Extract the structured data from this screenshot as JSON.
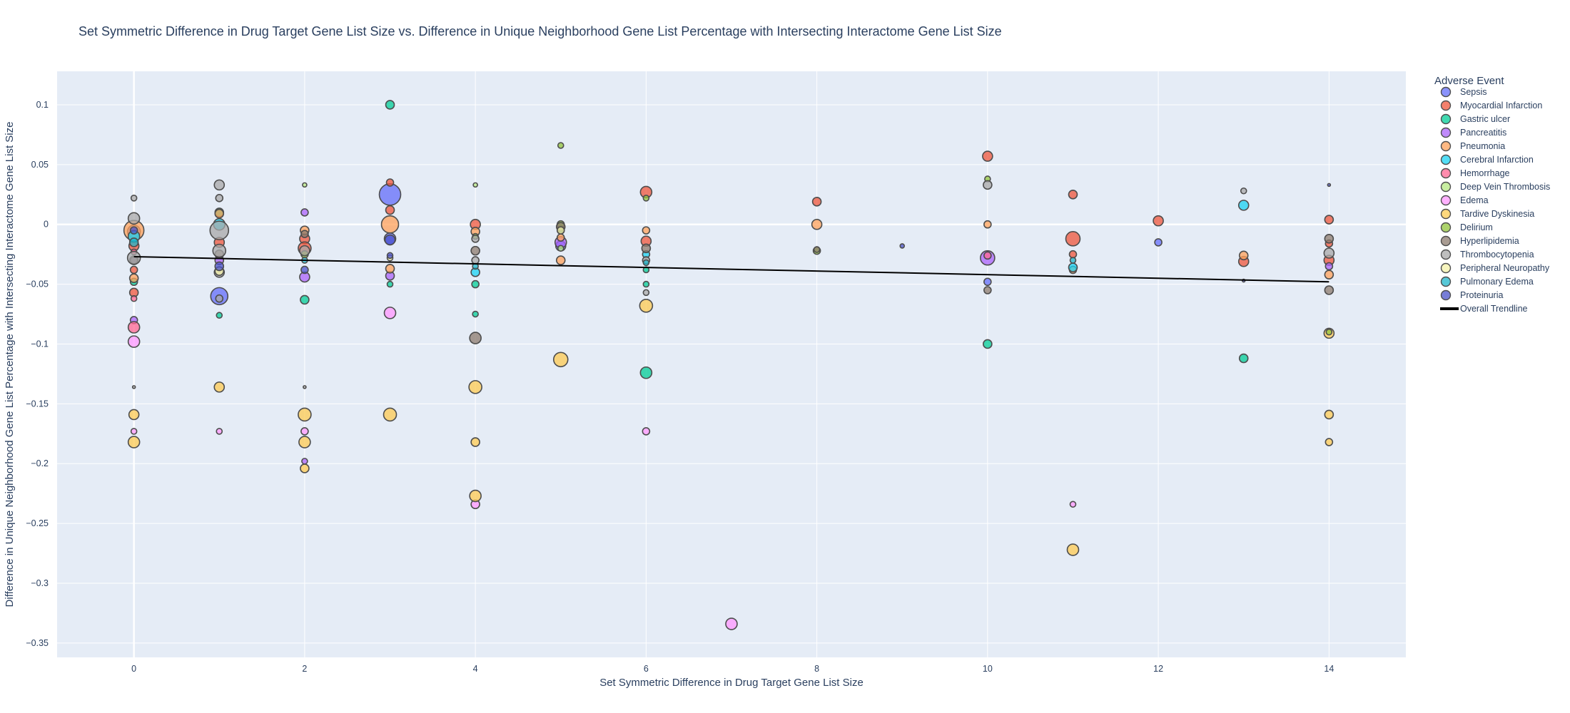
{
  "chart_data": {
    "type": "scatter",
    "title": "Set Symmetric Difference in Drug Target Gene List Size vs. Difference in Unique Neighborhood Gene List Percentage with Intersecting Interactome Gene List Size",
    "xlabel": "Set Symmetric Difference in Drug Target Gene List Size",
    "ylabel": "Difference in Unique Neighborhood Gene List Percentage with Intersecting Interactome Gene List Size",
    "xlim": [
      -0.9,
      14.9
    ],
    "ylim": [
      -0.362,
      0.128
    ],
    "xticks": [
      0,
      2,
      4,
      6,
      8,
      10,
      12,
      14
    ],
    "yticks": [
      0.1,
      0.05,
      0,
      -0.05,
      -0.1,
      -0.15,
      -0.2,
      -0.25,
      -0.3,
      -0.35
    ],
    "xtick_labels": [
      "0",
      "2",
      "4",
      "6",
      "8",
      "10",
      "12",
      "14"
    ],
    "ytick_labels": [
      "0.1",
      "0.05",
      "0",
      "−0.05",
      "−0.1",
      "−0.15",
      "−0.2",
      "−0.25",
      "−0.3",
      "−0.35"
    ],
    "grid": true,
    "legend_title": "Adverse Event",
    "legend_position": "right",
    "trendline": {
      "name": "Overall Trendline",
      "color": "#000000",
      "x": [
        0,
        14
      ],
      "y": [
        -0.027,
        -0.048
      ]
    },
    "series": [
      {
        "name": "Sepsis",
        "color": "#636efa",
        "points": [
          [
            0,
            -0.006,
            9
          ],
          [
            1,
            -0.06,
            12
          ],
          [
            3,
            0.025,
            15
          ],
          [
            3,
            -0.012,
            8
          ],
          [
            5,
            -0.018,
            7
          ],
          [
            10,
            -0.048,
            5
          ],
          [
            12,
            -0.015,
            5
          ],
          [
            0,
            -0.03,
            6
          ]
        ]
      },
      {
        "name": "Myocardial Infarction",
        "color": "#ef553b",
        "points": [
          [
            0,
            -0.018,
            7
          ],
          [
            0,
            -0.057,
            6
          ],
          [
            1,
            -0.015,
            7
          ],
          [
            2,
            -0.012,
            7
          ],
          [
            2,
            -0.02,
            9
          ],
          [
            3,
            0.012,
            6
          ],
          [
            3,
            0.035,
            5
          ],
          [
            4,
            0,
            7
          ],
          [
            6,
            0.027,
            8
          ],
          [
            6,
            -0.014,
            7
          ],
          [
            8,
            0.019,
            6
          ],
          [
            10,
            0.057,
            7
          ],
          [
            11,
            0.025,
            6
          ],
          [
            11,
            -0.012,
            10
          ],
          [
            11,
            -0.025,
            5
          ],
          [
            12,
            0.003,
            7
          ],
          [
            13,
            -0.031,
            7
          ],
          [
            14,
            0.004,
            6
          ],
          [
            14,
            -0.03,
            7
          ],
          [
            14,
            -0.016,
            5
          ],
          [
            0,
            -0.038,
            5
          ]
        ]
      },
      {
        "name": "Gastric ulcer",
        "color": "#00cc96",
        "points": [
          [
            1,
            0.01,
            6
          ],
          [
            1,
            -0.076,
            4
          ],
          [
            2,
            -0.063,
            6
          ],
          [
            3,
            0.1,
            6
          ],
          [
            3,
            -0.05,
            4
          ],
          [
            4,
            -0.075,
            4
          ],
          [
            4,
            -0.05,
            5
          ],
          [
            5,
            -0.004,
            5
          ],
          [
            6,
            -0.124,
            8
          ],
          [
            6,
            -0.038,
            4
          ],
          [
            6,
            -0.05,
            4
          ],
          [
            10,
            -0.1,
            6
          ],
          [
            13,
            -0.112,
            6
          ],
          [
            0,
            -0.048,
            5
          ]
        ]
      },
      {
        "name": "Pancreatitis",
        "color": "#ab63fa",
        "points": [
          [
            0,
            -0.08,
            5
          ],
          [
            1,
            -0.03,
            6
          ],
          [
            2,
            0.01,
            5
          ],
          [
            2,
            -0.044,
            7
          ],
          [
            3,
            -0.043,
            6
          ],
          [
            5,
            -0.015,
            8
          ],
          [
            10,
            -0.028,
            10
          ],
          [
            14,
            -0.035,
            5
          ],
          [
            2,
            -0.198,
            4
          ]
        ]
      },
      {
        "name": "Pneumonia",
        "color": "#ffa15a",
        "points": [
          [
            0,
            -0.005,
            14
          ],
          [
            1,
            0.009,
            6
          ],
          [
            2,
            -0.005,
            6
          ],
          [
            3,
            0,
            12
          ],
          [
            3,
            -0.037,
            6
          ],
          [
            4,
            -0.006,
            6
          ],
          [
            5,
            -0.011,
            5
          ],
          [
            5,
            -0.03,
            6
          ],
          [
            6,
            -0.005,
            5
          ],
          [
            8,
            0,
            7
          ],
          [
            10,
            0,
            5
          ],
          [
            11,
            -0.038,
            5
          ],
          [
            13,
            -0.026,
            6
          ],
          [
            14,
            -0.042,
            6
          ],
          [
            0,
            -0.045,
            6
          ]
        ]
      },
      {
        "name": "Cerebral Infarction",
        "color": "#19d3f3",
        "points": [
          [
            0,
            -0.01,
            8
          ],
          [
            1,
            0,
            8
          ],
          [
            4,
            -0.04,
            6
          ],
          [
            6,
            -0.025,
            5
          ],
          [
            11,
            -0.036,
            6
          ],
          [
            13,
            0.016,
            7
          ]
        ]
      },
      {
        "name": "Hemorrhage",
        "color": "#ff6692",
        "points": [
          [
            0,
            -0.086,
            8
          ],
          [
            0,
            -0.062,
            4
          ],
          [
            10,
            -0.026,
            5
          ],
          [
            0,
            -0.023,
            4
          ]
        ]
      },
      {
        "name": "Deep Vein Thrombosis",
        "color": "#b6e880",
        "points": [
          [
            4,
            0.033,
            3
          ],
          [
            2,
            0.033,
            3
          ],
          [
            5,
            -0.02,
            4
          ]
        ]
      },
      {
        "name": "Edema",
        "color": "#ff97ff",
        "points": [
          [
            0,
            -0.098,
            8
          ],
          [
            0,
            -0.173,
            4
          ],
          [
            1,
            -0.173,
            4
          ],
          [
            2,
            -0.173,
            5
          ],
          [
            3,
            -0.074,
            8
          ],
          [
            4,
            -0.234,
            6
          ],
          [
            6,
            -0.173,
            5
          ],
          [
            7,
            -0.334,
            8
          ],
          [
            11,
            -0.234,
            4
          ]
        ]
      },
      {
        "name": "Tardive Dyskinesia",
        "color": "#fecb52",
        "points": [
          [
            0,
            -0.159,
            7
          ],
          [
            0,
            -0.182,
            8
          ],
          [
            1,
            -0.136,
            7
          ],
          [
            2,
            -0.159,
            9
          ],
          [
            2,
            -0.182,
            8
          ],
          [
            2,
            -0.204,
            6
          ],
          [
            3,
            -0.159,
            9
          ],
          [
            4,
            -0.136,
            9
          ],
          [
            4,
            -0.182,
            6
          ],
          [
            4,
            -0.227,
            8
          ],
          [
            5,
            -0.113,
            10
          ],
          [
            6,
            -0.068,
            9
          ],
          [
            11,
            -0.272,
            8
          ],
          [
            14,
            -0.159,
            6
          ],
          [
            14,
            -0.182,
            5
          ],
          [
            14,
            -0.091,
            7
          ]
        ]
      },
      {
        "name": "Delirium",
        "color": "#91c43a",
        "points": [
          [
            5,
            0.066,
            4
          ],
          [
            5,
            0,
            5
          ],
          [
            2,
            -0.025,
            5
          ],
          [
            4,
            -0.01,
            4
          ],
          [
            6,
            0.022,
            4
          ],
          [
            8,
            -0.022,
            5
          ],
          [
            14,
            -0.09,
            4
          ],
          [
            10,
            0.038,
            4
          ]
        ]
      },
      {
        "name": "Hyperlipidemia",
        "color": "#8c7b6e",
        "points": [
          [
            0,
            -0.03,
            5
          ],
          [
            1,
            -0.025,
            6
          ],
          [
            2,
            -0.008,
            5
          ],
          [
            4,
            -0.095,
            8
          ],
          [
            4,
            -0.022,
            6
          ],
          [
            5,
            -0.002,
            6
          ],
          [
            6,
            -0.02,
            6
          ],
          [
            10,
            -0.055,
            5
          ],
          [
            14,
            -0.055,
            6
          ],
          [
            14,
            -0.012,
            6
          ],
          [
            8,
            -0.021,
            4
          ]
        ]
      },
      {
        "name": "Thrombocytopenia",
        "color": "#a8a8a8",
        "points": [
          [
            0,
            0.022,
            4
          ],
          [
            0,
            0.005,
            8
          ],
          [
            0,
            -0.028,
            9
          ],
          [
            1,
            0.033,
            7
          ],
          [
            1,
            0.022,
            5
          ],
          [
            1,
            -0.005,
            13
          ],
          [
            1,
            -0.022,
            9
          ],
          [
            1,
            -0.04,
            7
          ],
          [
            1,
            -0.062,
            5
          ],
          [
            2,
            -0.022,
            7
          ],
          [
            4,
            -0.012,
            5
          ],
          [
            4,
            -0.03,
            5
          ],
          [
            6,
            -0.057,
            4
          ],
          [
            6,
            -0.03,
            5
          ],
          [
            10,
            0.033,
            6
          ],
          [
            13,
            0.028,
            4
          ],
          [
            14,
            -0.024,
            7
          ],
          [
            0,
            -0.136,
            2
          ],
          [
            2,
            -0.136,
            2
          ]
        ]
      },
      {
        "name": "Peripheral Neuropathy",
        "color": "#f4f1a8",
        "points": [
          [
            1,
            -0.039,
            6
          ],
          [
            5,
            -0.005,
            5
          ],
          [
            3,
            -0.028,
            4
          ]
        ]
      },
      {
        "name": "Pulmonary Edema",
        "color": "#1fb5c9",
        "points": [
          [
            0,
            -0.015,
            6
          ],
          [
            2,
            -0.03,
            4
          ],
          [
            4,
            -0.035,
            4
          ],
          [
            6,
            -0.032,
            4
          ],
          [
            11,
            -0.03,
            4
          ]
        ]
      },
      {
        "name": "Proteinuria",
        "color": "#4a52c9",
        "points": [
          [
            0,
            -0.005,
            5
          ],
          [
            1,
            -0.035,
            6
          ],
          [
            2,
            -0.038,
            5
          ],
          [
            3,
            -0.013,
            7
          ],
          [
            3,
            -0.026,
            4
          ],
          [
            9,
            -0.018,
            3
          ],
          [
            14,
            0.033,
            2
          ],
          [
            13,
            -0.047,
            2
          ]
        ]
      }
    ]
  }
}
